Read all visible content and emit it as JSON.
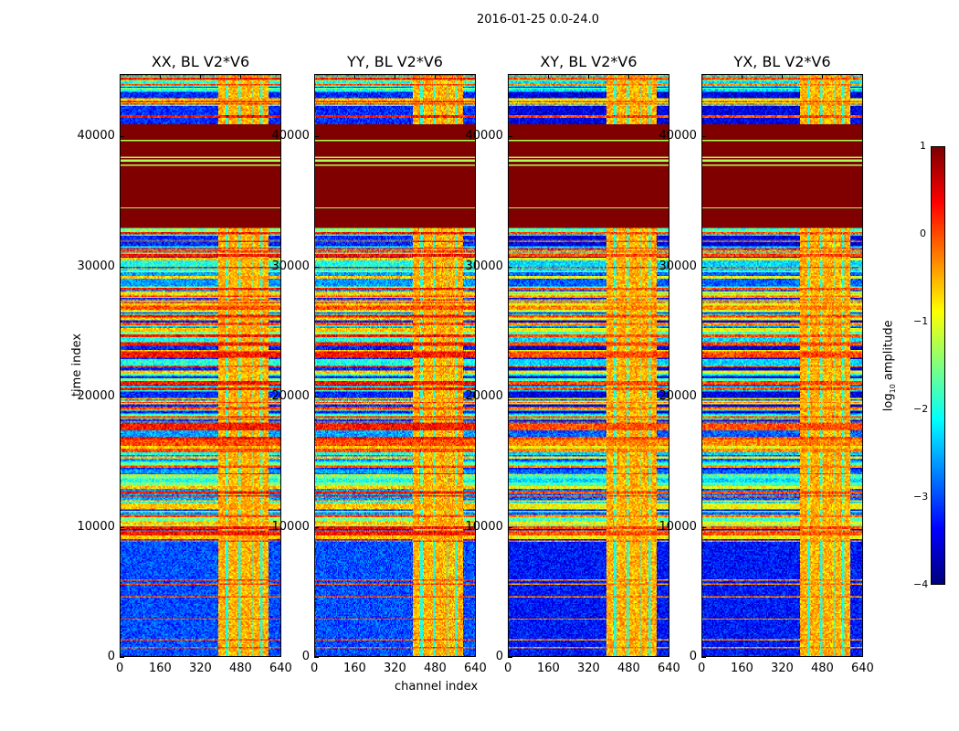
{
  "chart_data": {
    "type": "heatmap",
    "title": "2016-01-25 0.0-24.0",
    "xlabel": "channel index",
    "ylabel": "time index",
    "xlim": [
      0,
      640
    ],
    "ylim": [
      0,
      44800
    ],
    "xticks": [
      "0",
      "160",
      "320",
      "480",
      "640"
    ],
    "yticks": [
      "0",
      "10000",
      "20000",
      "30000",
      "40000"
    ],
    "panels": [
      {
        "title": "XX, BL V2*V6",
        "pol": "XX"
      },
      {
        "title": "YY, BL V2*V6",
        "pol": "YY"
      },
      {
        "title": "XY, BL V2*V6",
        "pol": "XY"
      },
      {
        "title": "YX, BL V2*V6",
        "pol": "YX"
      }
    ],
    "colorbar": {
      "label_prefix": "log",
      "label_sub": "10",
      "label_suffix": " amplitude",
      "range": [
        -4,
        1
      ],
      "ticks": [
        "1",
        "0",
        "−1",
        "−2",
        "−3",
        "−4"
      ],
      "colormap": "jet"
    },
    "structure": {
      "quiet_time_range": [
        0,
        9000
      ],
      "quiet_level": -3.0,
      "flagged_time_range": [
        33000,
        41000
      ],
      "flagged_level": 1,
      "rfi_channel_range": [
        390,
        590
      ],
      "rfi_level": -0.5,
      "rfi_gap_channels": [
        [
          420,
          430
        ],
        [
          470,
          478
        ],
        [
          525,
          532
        ],
        [
          560,
          566
        ]
      ],
      "cross_pol_offset": -0.3
    }
  }
}
